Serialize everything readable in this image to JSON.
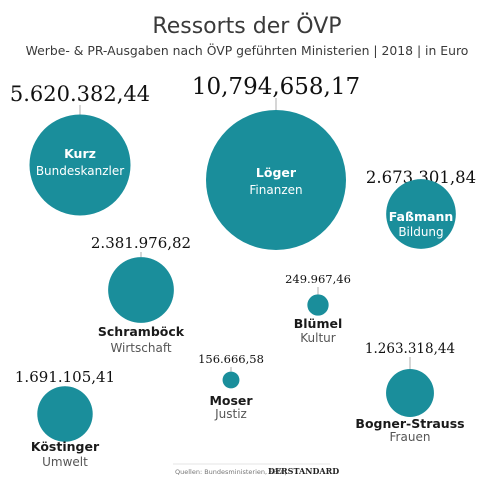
{
  "chart_data": {
    "type": "bubble",
    "title": "Ressorts der ÖVP",
    "subtitle": "Werbe- & PR-Ausgaben nach ÖVP geführten Ministerien | 2018 | in Euro",
    "color": "#1a8e9b",
    "series": [
      {
        "name": "Kurz",
        "department": "Bundeskanzler",
        "value": 5620382.44,
        "value_label": "5.620.382,44"
      },
      {
        "name": "Löger",
        "department": "Finanzen",
        "value": 10794658.17,
        "value_label": "10,794,658,17"
      },
      {
        "name": "Faßmann",
        "department": "Bildung",
        "value": 2673301.84,
        "value_label": "2.673.301,84"
      },
      {
        "name": "Schramböck",
        "department": "Wirtschaft",
        "value": 2381976.82,
        "value_label": "2.381.976,82"
      },
      {
        "name": "Blümel",
        "department": "Kultur",
        "value": 249967.46,
        "value_label": "249.967,46"
      },
      {
        "name": "Moser",
        "department": "Justiz",
        "value": 156666.58,
        "value_label": "156.666,58"
      },
      {
        "name": "Bogner-Strauss",
        "department": "Frauen",
        "value": 1263318.44,
        "value_label": "1.263.318,44"
      },
      {
        "name": "Köstinger",
        "department": "Umwelt",
        "value": 1691105.41,
        "value_label": "1.691.105,41"
      }
    ]
  },
  "footer": {
    "source": "Quellen: Bundesministerien, SPÖ |",
    "brand": "DERSTANDARD"
  }
}
